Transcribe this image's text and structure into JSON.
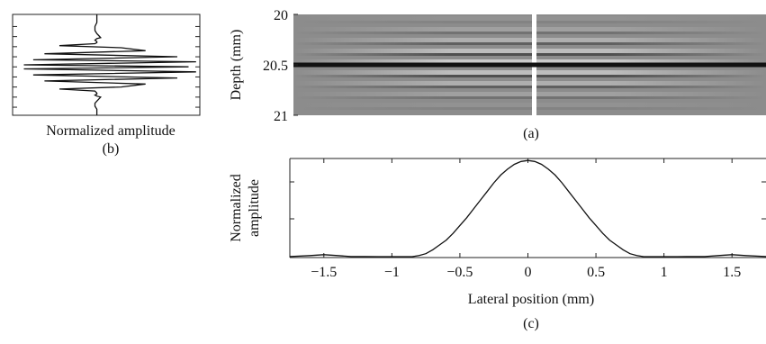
{
  "chart_data": [
    {
      "panel": "(a)",
      "type": "heatmap",
      "ylabel": "Depth (mm)",
      "y_ticks": [
        20,
        20.5,
        21
      ],
      "y_tick_labels": [
        "20",
        "20.5",
        "21"
      ],
      "ylim": [
        20,
        21
      ],
      "colormap": "grayscale",
      "features": {
        "horizontal_line_depth": 20.5,
        "vertical_line_lateral": 0
      }
    },
    {
      "panel": "(b)",
      "type": "line",
      "xlabel": "Normalized amplitude",
      "y_ticks": [
        0.12,
        0.22,
        0.32,
        0.42,
        0.52,
        0.62,
        0.72,
        0.82,
        0.92
      ],
      "series": [
        {
          "x": [
            0.45,
            0.45,
            0.45,
            0.44,
            0.44,
            0.45,
            0.46,
            0.47,
            0.45,
            0.44,
            0.45,
            0.45,
            0.44,
            0.25,
            0.58,
            0.71,
            0.17,
            0.88,
            0.11,
            0.98,
            0.06,
            0.94,
            0.06,
            0.98,
            0.11,
            0.88,
            0.17,
            0.71,
            0.58,
            0.25,
            0.44,
            0.45,
            0.45,
            0.44,
            0.45,
            0.47,
            0.46,
            0.45,
            0.44,
            0.44,
            0.45,
            0.45,
            0.45
          ],
          "y": [
            0.0,
            0.04,
            0.08,
            0.12,
            0.16,
            0.19,
            0.21,
            0.23,
            0.24,
            0.255,
            0.27,
            0.28,
            0.29,
            0.31,
            0.33,
            0.36,
            0.39,
            0.42,
            0.45,
            0.47,
            0.5,
            0.52,
            0.54,
            0.57,
            0.6,
            0.63,
            0.66,
            0.69,
            0.72,
            0.74,
            0.76,
            0.78,
            0.79,
            0.8,
            0.81,
            0.82,
            0.84,
            0.86,
            0.88,
            0.91,
            0.94,
            0.97,
            1.0
          ]
        }
      ]
    },
    {
      "panel": "(c)",
      "type": "line",
      "xlabel": "Lateral position (mm)",
      "ylabel": "Normalized amplitude",
      "xlim": [
        -1.75,
        1.75
      ],
      "ylim": [
        0,
        1
      ],
      "x_ticks": [
        -1.5,
        -1,
        -0.5,
        0,
        0.5,
        1,
        1.5
      ],
      "x_tick_labels": [
        "−1.5",
        "−1",
        "−0.5",
        "0",
        "0.5",
        "1",
        "1.5"
      ],
      "series": [
        {
          "x": [
            -1.75,
            -1.6,
            -1.5,
            -1.4,
            -1.3,
            -1.2,
            -1.1,
            -1.0,
            -0.95,
            -0.9,
            -0.85,
            -0.8,
            -0.75,
            -0.7,
            -0.65,
            -0.6,
            -0.55,
            -0.5,
            -0.45,
            -0.4,
            -0.35,
            -0.3,
            -0.25,
            -0.2,
            -0.15,
            -0.1,
            -0.05,
            0,
            0.05,
            0.1,
            0.15,
            0.2,
            0.25,
            0.3,
            0.35,
            0.4,
            0.45,
            0.5,
            0.55,
            0.6,
            0.65,
            0.7,
            0.75,
            0.8,
            0.85,
            0.9,
            0.95,
            1.0,
            1.1,
            1.2,
            1.3,
            1.4,
            1.5,
            1.6,
            1.75
          ],
          "y": [
            0.01,
            0.02,
            0.03,
            0.02,
            0.01,
            0.01,
            0.0,
            -0.01,
            -0.02,
            -0.01,
            0.0,
            0.02,
            0.04,
            0.08,
            0.13,
            0.18,
            0.25,
            0.33,
            0.41,
            0.5,
            0.59,
            0.68,
            0.77,
            0.85,
            0.91,
            0.96,
            0.99,
            1.0,
            0.99,
            0.96,
            0.91,
            0.85,
            0.77,
            0.68,
            0.59,
            0.5,
            0.41,
            0.33,
            0.25,
            0.18,
            0.13,
            0.08,
            0.04,
            0.02,
            0.0,
            -0.01,
            -0.02,
            -0.01,
            0.0,
            0.01,
            0.01,
            0.02,
            0.03,
            0.02,
            0.01
          ]
        }
      ]
    }
  ],
  "captions": {
    "a": "(a)",
    "b": "(b)",
    "c": "(c)"
  }
}
